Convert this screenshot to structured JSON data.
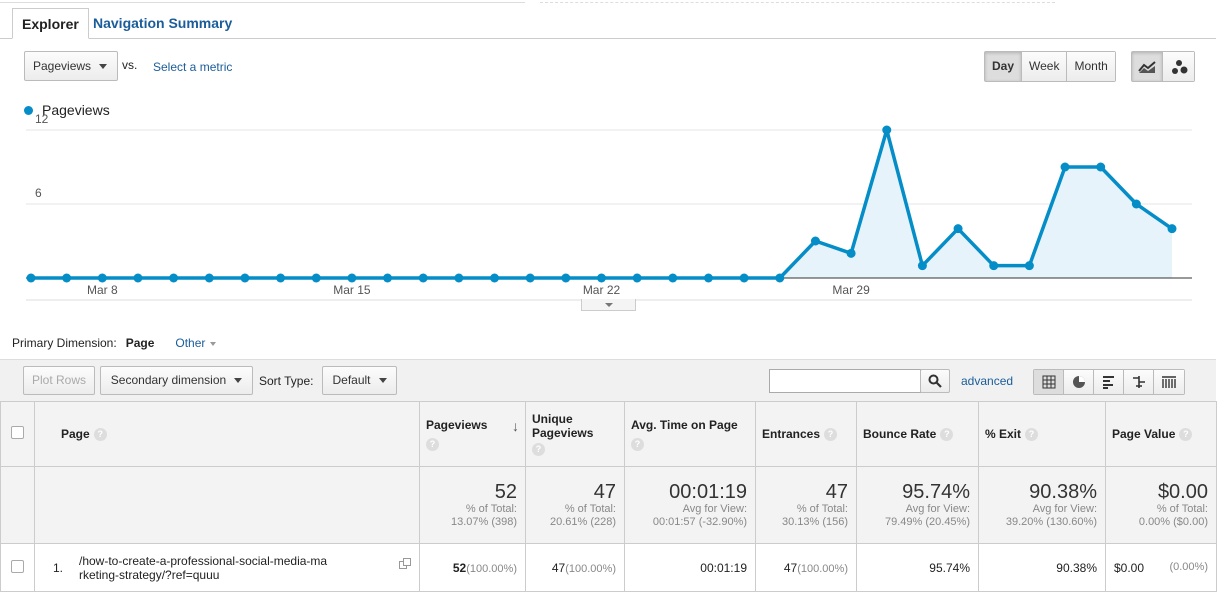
{
  "tabs": {
    "explorer": "Explorer",
    "navigation_summary": "Navigation Summary"
  },
  "metric_select": {
    "value": "Pageviews",
    "vs": "vs.",
    "select_metric": "Select a metric"
  },
  "period": {
    "day": "Day",
    "week": "Week",
    "month": "Month",
    "selected": "Day"
  },
  "chart_data": {
    "type": "area",
    "series": [
      {
        "name": "Pageviews",
        "color": "#058dc7",
        "values": [
          0,
          0,
          0,
          0,
          0,
          0,
          0,
          0,
          0,
          0,
          0,
          0,
          0,
          0,
          0,
          0,
          0,
          0,
          0,
          0,
          0,
          0,
          3,
          2,
          12,
          1,
          4,
          1,
          1,
          9,
          9,
          6,
          4
        ]
      }
    ],
    "yticks": [
      12,
      6
    ],
    "ylim": [
      0,
      12
    ],
    "xticks": [
      {
        "label": "Mar 8",
        "index": 2
      },
      {
        "label": "Mar 15",
        "index": 9
      },
      {
        "label": "Mar 22",
        "index": 16
      },
      {
        "label": "Mar 29",
        "index": 23
      }
    ],
    "grid": true
  },
  "primary_dimension": {
    "label": "Primary Dimension:",
    "current": "Page",
    "other": "Other"
  },
  "toolbar": {
    "plot_rows": "Plot Rows",
    "secondary_dimension": "Secondary dimension",
    "sort_type_label": "Sort Type:",
    "sort_type_value": "Default",
    "search_placeholder": "",
    "advanced": "advanced"
  },
  "table": {
    "headers": {
      "page": "Page",
      "pageviews": "Pageviews",
      "unique_pageviews": "Unique Pageviews",
      "avg_time": "Avg. Time on Page",
      "entrances": "Entrances",
      "bounce_rate": "Bounce Rate",
      "exit": "% Exit",
      "page_value": "Page Value"
    },
    "totals": {
      "pageviews": {
        "big": "52",
        "line1": "% of Total:",
        "line2": "13.07% (398)"
      },
      "unique_pageviews": {
        "big": "47",
        "line1": "% of Total:",
        "line2": "20.61% (228)"
      },
      "avg_time": {
        "big": "00:01:19",
        "line1": "Avg for View:",
        "line2": "00:01:57 (-32.90%)"
      },
      "entrances": {
        "big": "47",
        "line1": "% of Total:",
        "line2": "30.13% (156)"
      },
      "bounce_rate": {
        "big": "95.74%",
        "line1": "Avg for View:",
        "line2": "79.49% (20.45%)"
      },
      "exit": {
        "big": "90.38%",
        "line1": "Avg for View:",
        "line2": "39.20% (130.60%)"
      },
      "page_value": {
        "big": "$0.00",
        "line1": "% of Total:",
        "line2": "0.00% ($0.00)"
      }
    },
    "rows": [
      {
        "index": "1.",
        "page_line1": "/how-to-create-a-professional-social-media-ma",
        "page_line2": "rketing-strategy/?ref=quuu",
        "pageviews": "52",
        "pageviews_pct": "(100.00%)",
        "unique_pageviews": "47",
        "unique_pageviews_pct": "(100.00%)",
        "avg_time": "00:01:19",
        "entrances": "47",
        "entrances_pct": "(100.00%)",
        "bounce_rate": "95.74%",
        "exit": "90.38%",
        "page_value": "$0.00",
        "page_value_pct": "(0.00%)"
      }
    ]
  }
}
